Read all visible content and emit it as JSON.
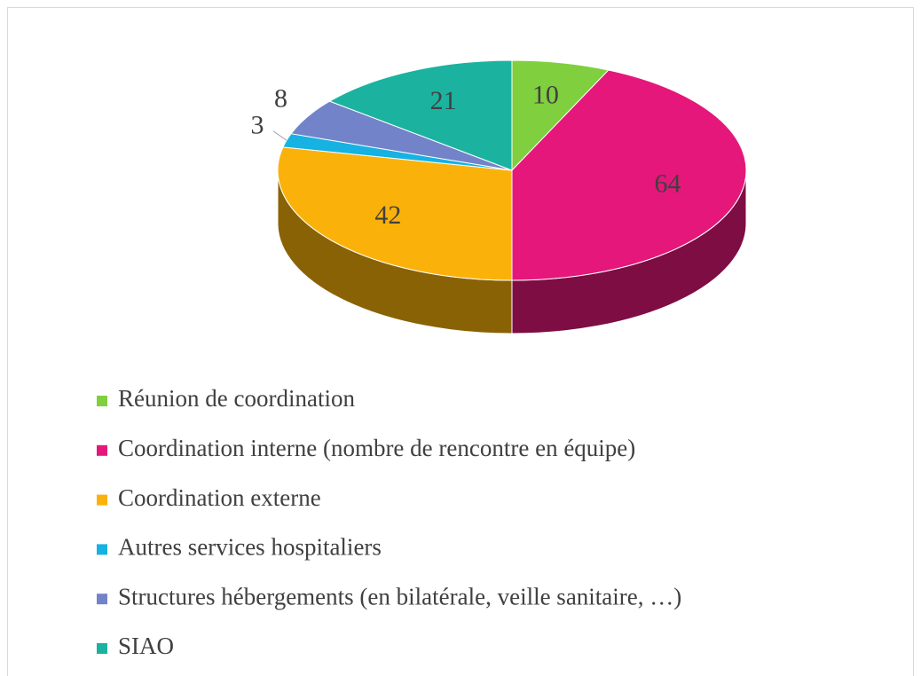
{
  "chart_data": {
    "type": "pie",
    "categories": [
      "Réunion de coordination",
      "Coordination interne (nombre de rencontre en équipe)",
      "Coordination externe",
      "Autres services hospitaliers",
      "Structures hébergements (en bilatérale,  veille sanitaire, …)",
      "SIAO"
    ],
    "values": [
      10,
      64,
      42,
      3,
      8,
      21
    ],
    "colors": [
      "#7fcf3e",
      "#e5177a",
      "#fab20b",
      "#16b2e2",
      "#7383c9",
      "#1bb39f"
    ]
  }
}
